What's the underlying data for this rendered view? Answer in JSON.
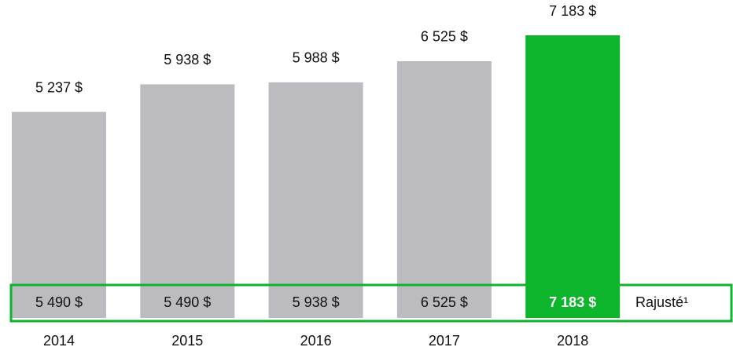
{
  "chart_data": {
    "type": "bar",
    "categories": [
      "2014",
      "2015",
      "2016",
      "2017",
      "2018"
    ],
    "values": [
      5237,
      5938,
      5988,
      6525,
      7183
    ],
    "value_labels": [
      "5 237 $",
      "5 938 $",
      "5 988 $",
      "6 525 $",
      "7 183 $"
    ],
    "color": "#bcbbc0",
    "highlight_category": "2018",
    "highlight_color": "#0db52c",
    "adjusted_label": "Rajusté¹",
    "adjusted_values": [
      5490,
      5490,
      5938,
      6525,
      7183
    ],
    "adjusted_value_labels": [
      "5 490 $",
      "5 490 $",
      "5 938 $",
      "6 525 $",
      "7 183 $"
    ]
  }
}
